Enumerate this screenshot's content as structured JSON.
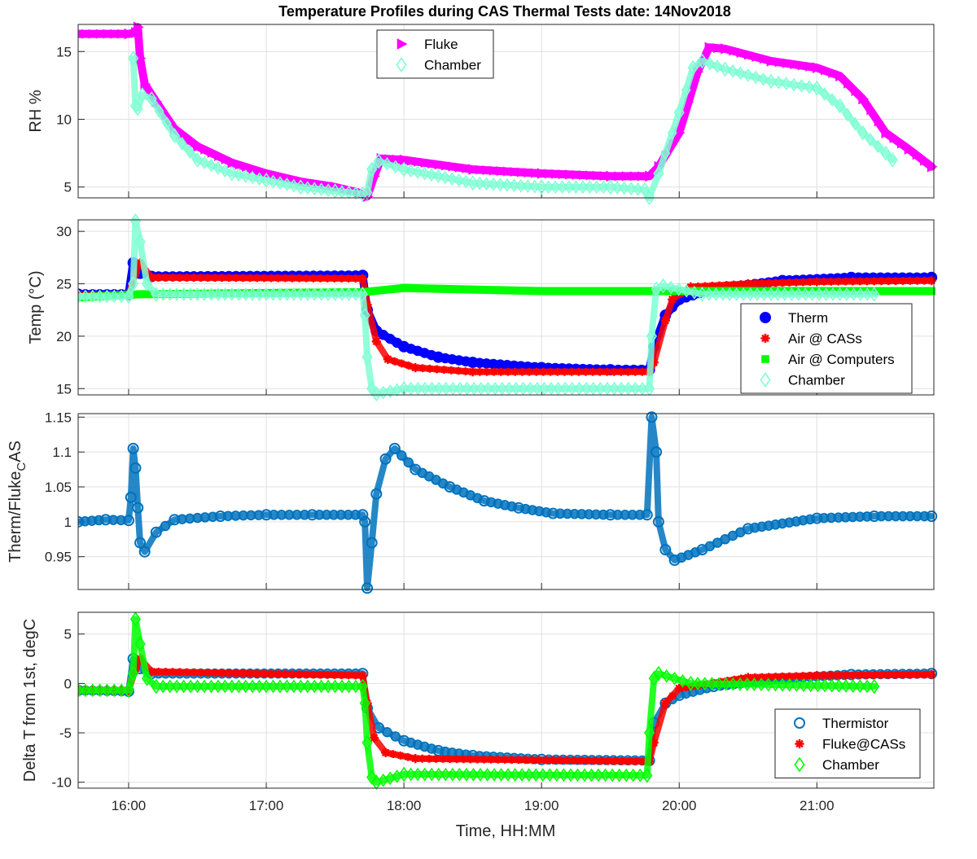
{
  "title": "Temperature Profiles during CAS Thermal Tests date: 14Nov2018",
  "xlabel": "Time, HH:MM",
  "x_ticks": [
    "16:00",
    "17:00",
    "18:00",
    "19:00",
    "20:00",
    "21:00"
  ],
  "chart_data": [
    {
      "type": "scatter",
      "ylabel": "RH %",
      "xlim": [
        "15:38",
        "21:51"
      ],
      "ylim": [
        4.2,
        17
      ],
      "y_ticks": [
        5,
        10,
        15
      ],
      "grid": true,
      "legend": "top-center",
      "series": [
        {
          "name": "Fluke",
          "marker": "triangle-right",
          "color": "#ff00ff",
          "filled": true,
          "points": [
            [
              "15:38",
              16.3
            ],
            [
              "16:00",
              16.3
            ],
            [
              "16:03",
              16.4
            ],
            [
              "16:04",
              16.8
            ],
            [
              "16:05",
              14.5
            ],
            [
              "16:07",
              12.6
            ],
            [
              "16:12",
              11.3
            ],
            [
              "16:20",
              9.3
            ],
            [
              "16:30",
              8.0
            ],
            [
              "16:45",
              6.8
            ],
            [
              "17:00",
              6.0
            ],
            [
              "17:15",
              5.4
            ],
            [
              "17:30",
              5.0
            ],
            [
              "17:40",
              4.6
            ],
            [
              "17:44",
              4.3
            ],
            [
              "17:47",
              5.8
            ],
            [
              "17:50",
              7.1
            ],
            [
              "18:00",
              7.0
            ],
            [
              "18:30",
              6.3
            ],
            [
              "19:00",
              6.0
            ],
            [
              "19:30",
              5.8
            ],
            [
              "19:47",
              5.8
            ],
            [
              "19:51",
              6.5
            ],
            [
              "20:00",
              9.0
            ],
            [
              "20:08",
              13.5
            ],
            [
              "20:13",
              15.3
            ],
            [
              "20:20",
              15.2
            ],
            [
              "20:40",
              14.3
            ],
            [
              "21:00",
              13.8
            ],
            [
              "21:10",
              13.2
            ],
            [
              "21:20",
              11.5
            ],
            [
              "21:30",
              9.0
            ],
            [
              "21:40",
              7.8
            ],
            [
              "21:50",
              6.5
            ]
          ]
        },
        {
          "name": "Chamber",
          "marker": "diamond",
          "color": "#7fffd4",
          "filled": false,
          "points": [
            [
              "16:02",
              14.5
            ],
            [
              "16:03",
              11.0
            ],
            [
              "16:04",
              10.8
            ],
            [
              "16:06",
              11.8
            ],
            [
              "16:10",
              11.5
            ],
            [
              "16:20",
              8.8
            ],
            [
              "16:30",
              7.0
            ],
            [
              "16:45",
              6.0
            ],
            [
              "17:00",
              5.5
            ],
            [
              "17:15",
              5.0
            ],
            [
              "17:30",
              4.7
            ],
            [
              "17:42",
              4.5
            ],
            [
              "17:44",
              4.6
            ],
            [
              "17:46",
              6.3
            ],
            [
              "17:49",
              6.9
            ],
            [
              "18:00",
              6.3
            ],
            [
              "18:30",
              5.3
            ],
            [
              "19:00",
              5.0
            ],
            [
              "19:30",
              5.0
            ],
            [
              "19:45",
              4.8
            ],
            [
              "19:47",
              4.2
            ],
            [
              "19:51",
              6.0
            ],
            [
              "20:00",
              10.5
            ],
            [
              "20:06",
              13.8
            ],
            [
              "20:10",
              14.3
            ],
            [
              "20:20",
              13.7
            ],
            [
              "20:40",
              12.8
            ],
            [
              "21:00",
              12.3
            ],
            [
              "21:10",
              11.0
            ],
            [
              "21:20",
              9.0
            ],
            [
              "21:30",
              7.5
            ],
            [
              "21:33",
              7.0
            ]
          ]
        }
      ]
    },
    {
      "type": "scatter",
      "ylabel": "Temp (°C)",
      "xlim": [
        "15:38",
        "21:51"
      ],
      "ylim": [
        14.4,
        31.1
      ],
      "y_ticks": [
        15,
        20,
        25,
        30
      ],
      "grid": true,
      "legend": "bottom-right",
      "series": [
        {
          "name": "Therm",
          "marker": "circle",
          "color": "#0000ff",
          "filled": true,
          "points": [
            [
              "15:38",
              24.0
            ],
            [
              "16:00",
              24.0
            ],
            [
              "16:02",
              27.0
            ],
            [
              "16:05",
              26.0
            ],
            [
              "16:10",
              25.7
            ],
            [
              "17:42",
              25.8
            ],
            [
              "17:44",
              22.5
            ],
            [
              "17:48",
              20.5
            ],
            [
              "18:00",
              19.0
            ],
            [
              "18:15",
              18.0
            ],
            [
              "18:30",
              17.5
            ],
            [
              "19:00",
              17.0
            ],
            [
              "19:30",
              16.8
            ],
            [
              "19:47",
              16.8
            ],
            [
              "19:49",
              19.0
            ],
            [
              "19:54",
              22.0
            ],
            [
              "20:00",
              23.5
            ],
            [
              "20:15",
              24.5
            ],
            [
              "20:45",
              25.3
            ],
            [
              "21:15",
              25.6
            ],
            [
              "21:50",
              25.6
            ]
          ]
        },
        {
          "name": "Air @ CASs",
          "marker": "asterisk",
          "color": "#ff0000",
          "filled": false,
          "points": [
            [
              "15:38",
              23.9
            ],
            [
              "16:00",
              24.0
            ],
            [
              "16:03",
              26.0
            ],
            [
              "16:05",
              27.0
            ],
            [
              "16:10",
              25.6
            ],
            [
              "17:42",
              25.5
            ],
            [
              "17:44",
              23.0
            ],
            [
              "17:48",
              19.5
            ],
            [
              "17:53",
              17.8
            ],
            [
              "18:05",
              17.0
            ],
            [
              "18:30",
              16.6
            ],
            [
              "19:47",
              16.6
            ],
            [
              "19:49",
              17.5
            ],
            [
              "19:54",
              21.5
            ],
            [
              "19:57",
              23.5
            ],
            [
              "20:05",
              24.7
            ],
            [
              "20:30",
              25.0
            ],
            [
              "21:00",
              25.2
            ],
            [
              "21:50",
              25.3
            ]
          ]
        },
        {
          "name": "Air @ Computers",
          "marker": "square",
          "color": "#00ff00",
          "filled": true,
          "points": [
            [
              "15:38",
              23.7
            ],
            [
              "16:05",
              24.0
            ],
            [
              "17:42",
              24.2
            ],
            [
              "18:00",
              24.6
            ],
            [
              "19:00",
              24.3
            ],
            [
              "20:00",
              24.3
            ],
            [
              "21:00",
              24.3
            ],
            [
              "21:50",
              24.3
            ]
          ]
        },
        {
          "name": "Chamber",
          "marker": "diamond",
          "color": "#7fffd4",
          "filled": false,
          "points": [
            [
              "15:38",
              23.8
            ],
            [
              "16:00",
              23.8
            ],
            [
              "16:02",
              25.0
            ],
            [
              "16:03",
              31.0
            ],
            [
              "16:05",
              29.0
            ],
            [
              "16:08",
              25.0
            ],
            [
              "16:12",
              24.0
            ],
            [
              "17:42",
              24.0
            ],
            [
              "17:43",
              22.0
            ],
            [
              "17:44",
              18.0
            ],
            [
              "17:46",
              15.0
            ],
            [
              "17:48",
              14.5
            ],
            [
              "18:00",
              15.0
            ],
            [
              "19:47",
              15.0
            ],
            [
              "19:48",
              20.0
            ],
            [
              "19:50",
              24.5
            ],
            [
              "19:53",
              24.8
            ],
            [
              "20:10",
              24.0
            ],
            [
              "21:25",
              24.0
            ]
          ]
        }
      ]
    },
    {
      "type": "scatter",
      "ylabel": "Therm/Fluke_CAS",
      "xlim": [
        "15:38",
        "21:51"
      ],
      "ylim": [
        0.903,
        1.155
      ],
      "y_ticks": [
        0.95,
        1,
        1.05,
        1.1,
        1.15
      ],
      "grid": true,
      "series": [
        {
          "marker": "circle",
          "color": "#0072bd",
          "filled": false,
          "points": [
            [
              "15:38",
              1.0
            ],
            [
              "15:50",
              1.003
            ],
            [
              "16:00",
              1.002
            ],
            [
              "16:01",
              1.035
            ],
            [
              "16:02",
              1.105
            ],
            [
              "16:03",
              1.077
            ],
            [
              "16:04",
              1.02
            ],
            [
              "16:05",
              0.97
            ],
            [
              "16:07",
              0.957
            ],
            [
              "16:12",
              0.985
            ],
            [
              "16:20",
              1.003
            ],
            [
              "16:40",
              1.008
            ],
            [
              "17:00",
              1.01
            ],
            [
              "17:20",
              1.01
            ],
            [
              "17:42",
              1.01
            ],
            [
              "17:43",
              1.0
            ],
            [
              "17:44",
              0.905
            ],
            [
              "17:46",
              0.97
            ],
            [
              "17:48",
              1.04
            ],
            [
              "17:52",
              1.09
            ],
            [
              "17:56",
              1.105
            ],
            [
              "18:05",
              1.075
            ],
            [
              "18:20",
              1.05
            ],
            [
              "18:35",
              1.03
            ],
            [
              "18:50",
              1.02
            ],
            [
              "19:05",
              1.012
            ],
            [
              "19:30",
              1.01
            ],
            [
              "19:46",
              1.01
            ],
            [
              "19:48",
              1.15
            ],
            [
              "19:50",
              1.1
            ],
            [
              "19:51",
              1.0
            ],
            [
              "19:54",
              0.96
            ],
            [
              "19:58",
              0.945
            ],
            [
              "20:10",
              0.96
            ],
            [
              "20:30",
              0.99
            ],
            [
              "21:00",
              1.005
            ],
            [
              "21:25",
              1.008
            ],
            [
              "21:50",
              1.008
            ]
          ]
        }
      ]
    },
    {
      "type": "scatter",
      "ylabel": "Delta T from 1st, degC",
      "xlim": [
        "15:38",
        "21:51"
      ],
      "ylim": [
        -10.6,
        7.2
      ],
      "y_ticks": [
        -10,
        -5,
        0,
        5
      ],
      "grid": true,
      "legend": "bottom-right",
      "series": [
        {
          "name": "Thermistor",
          "marker": "circle",
          "color": "#0072bd",
          "filled": false,
          "points": [
            [
              "15:38",
              -0.7
            ],
            [
              "16:00",
              -0.8
            ],
            [
              "16:02",
              2.5
            ],
            [
              "16:05",
              1.5
            ],
            [
              "16:10",
              1.0
            ],
            [
              "17:42",
              1.0
            ],
            [
              "17:44",
              -2.5
            ],
            [
              "17:49",
              -4.5
            ],
            [
              "18:00",
              -5.8
            ],
            [
              "18:15",
              -6.8
            ],
            [
              "18:30",
              -7.3
            ],
            [
              "19:00",
              -7.7
            ],
            [
              "19:47",
              -7.8
            ],
            [
              "19:49",
              -4.0
            ],
            [
              "19:54",
              -2.0
            ],
            [
              "20:00",
              -1.2
            ],
            [
              "20:15",
              -0.3
            ],
            [
              "20:45",
              0.5
            ],
            [
              "21:15",
              0.9
            ],
            [
              "21:50",
              1.0
            ]
          ]
        },
        {
          "name": "Fluke@CASs",
          "marker": "asterisk",
          "color": "#ff0000",
          "filled": false,
          "points": [
            [
              "15:38",
              -0.7
            ],
            [
              "16:00",
              -0.7
            ],
            [
              "16:03",
              1.5
            ],
            [
              "16:05",
              2.5
            ],
            [
              "16:10",
              1.2
            ],
            [
              "17:42",
              0.8
            ],
            [
              "17:44",
              -2.0
            ],
            [
              "17:47",
              -5.5
            ],
            [
              "17:52",
              -7.0
            ],
            [
              "18:05",
              -7.6
            ],
            [
              "19:47",
              -7.9
            ],
            [
              "19:49",
              -6.0
            ],
            [
              "19:54",
              -2.0
            ],
            [
              "20:00",
              -0.5
            ],
            [
              "20:30",
              0.6
            ],
            [
              "21:00",
              0.8
            ],
            [
              "21:50",
              0.9
            ]
          ]
        },
        {
          "name": "Chamber",
          "marker": "diamond",
          "color": "#00ff00",
          "filled": false,
          "points": [
            [
              "15:38",
              -0.7
            ],
            [
              "16:00",
              -0.7
            ],
            [
              "16:02",
              1.0
            ],
            [
              "16:03",
              6.5
            ],
            [
              "16:05",
              4.0
            ],
            [
              "16:08",
              0.5
            ],
            [
              "16:12",
              -0.3
            ],
            [
              "17:42",
              -0.3
            ],
            [
              "17:43",
              -2.0
            ],
            [
              "17:44",
              -6.0
            ],
            [
              "17:46",
              -9.5
            ],
            [
              "17:48",
              -10.0
            ],
            [
              "18:00",
              -9.2
            ],
            [
              "19:46",
              -9.3
            ],
            [
              "19:47",
              -5.0
            ],
            [
              "19:49",
              0.5
            ],
            [
              "19:51",
              1.0
            ],
            [
              "20:05",
              0.0
            ],
            [
              "21:25",
              -0.3
            ]
          ]
        }
      ]
    }
  ]
}
